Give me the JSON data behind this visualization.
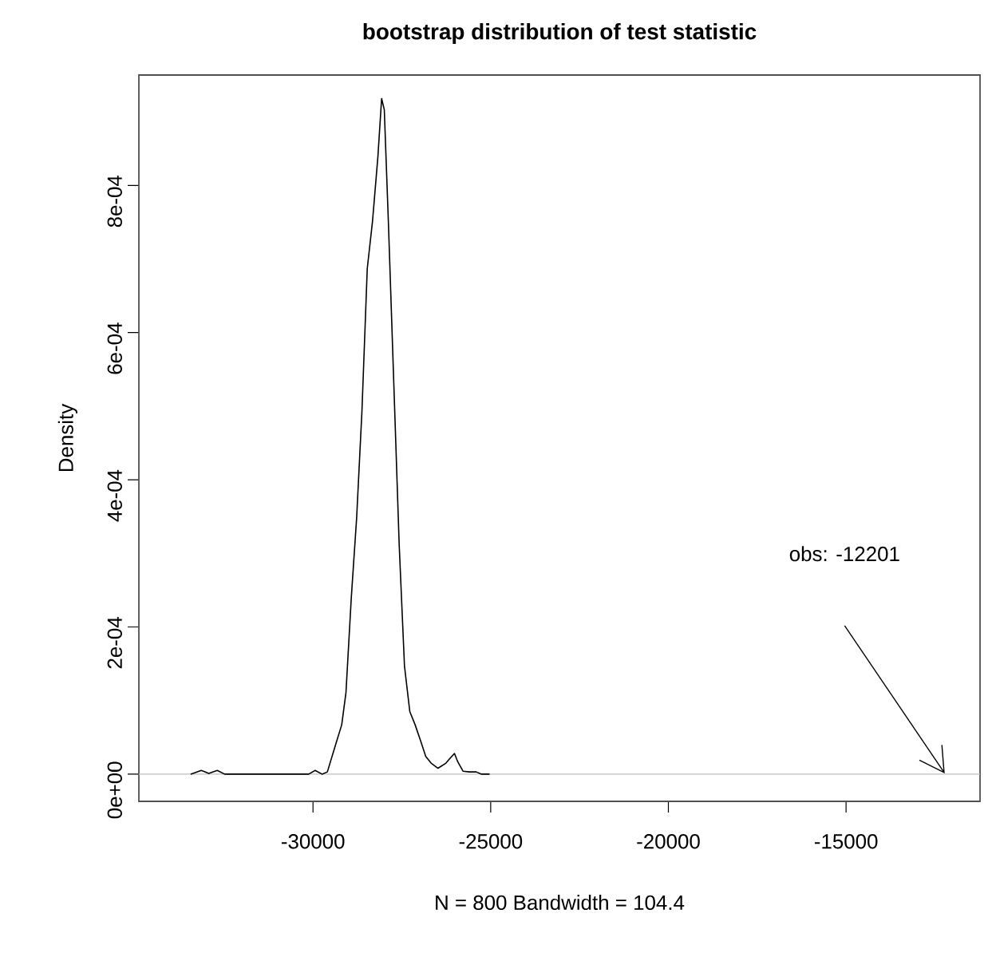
{
  "chart_data": {
    "type": "line",
    "title": "bootstrap distribution of test statistic",
    "xlabel": "N = 800   Bandwidth = 104.4",
    "ylabel": "Density",
    "x": [
      -33442,
      -33143,
      -32933,
      -32694,
      -32485,
      -30120,
      -29940,
      -29745,
      -29596,
      -29371,
      -29192,
      -29072,
      -28922,
      -28772,
      -28623,
      -28473,
      -28324,
      -28174,
      -28069,
      -27994,
      -27875,
      -27725,
      -27575,
      -27426,
      -27276,
      -27126,
      -26977,
      -26827,
      -26677,
      -26483,
      -26258,
      -26153,
      -26019,
      -25929,
      -25779,
      -25600,
      -25405,
      -25256,
      -25031
    ],
    "series": [
      {
        "color": "#000000",
        "values": [
          0,
          5e-06,
          1e-06,
          5e-06,
          0,
          0,
          5e-06,
          0,
          3e-06,
          3.9e-05,
          6.7e-05,
          0.000111,
          0.00024,
          0.000348,
          0.000493,
          0.000687,
          0.000752,
          0.000839,
          0.000918,
          0.000903,
          0.000745,
          0.000529,
          0.000312,
          0.000147,
          8.5e-05,
          6.7e-05,
          4.6e-05,
          2.4e-05,
          1.5e-05,
          8e-06,
          1.5e-05,
          2.1e-05,
          2.8e-05,
          1.7e-05,
          4e-06,
          3e-06,
          3e-06,
          0,
          0
        ]
      }
    ],
    "xlim": [
      -34900,
      -11230
    ],
    "ylim": [
      -3.7e-05,
      0.00095
    ],
    "xticks": [
      -30000,
      -25000,
      -20000,
      -15000
    ],
    "yticks": [
      {
        "value": 0,
        "label": "0e+00"
      },
      {
        "value": 0.0002,
        "label": "2e-04"
      },
      {
        "value": 0.0004,
        "label": "4e-04"
      },
      {
        "value": 0.0006,
        "label": "6e-04"
      },
      {
        "value": 0.0008,
        "label": "8e-04"
      }
    ],
    "ref_lines": [
      {
        "axis": "y",
        "value": 0,
        "color": "#bebebe"
      }
    ],
    "annotations": [
      "obs: -12201"
    ],
    "grid": false,
    "legend": false,
    "marker": "none",
    "line_style": "solid"
  }
}
